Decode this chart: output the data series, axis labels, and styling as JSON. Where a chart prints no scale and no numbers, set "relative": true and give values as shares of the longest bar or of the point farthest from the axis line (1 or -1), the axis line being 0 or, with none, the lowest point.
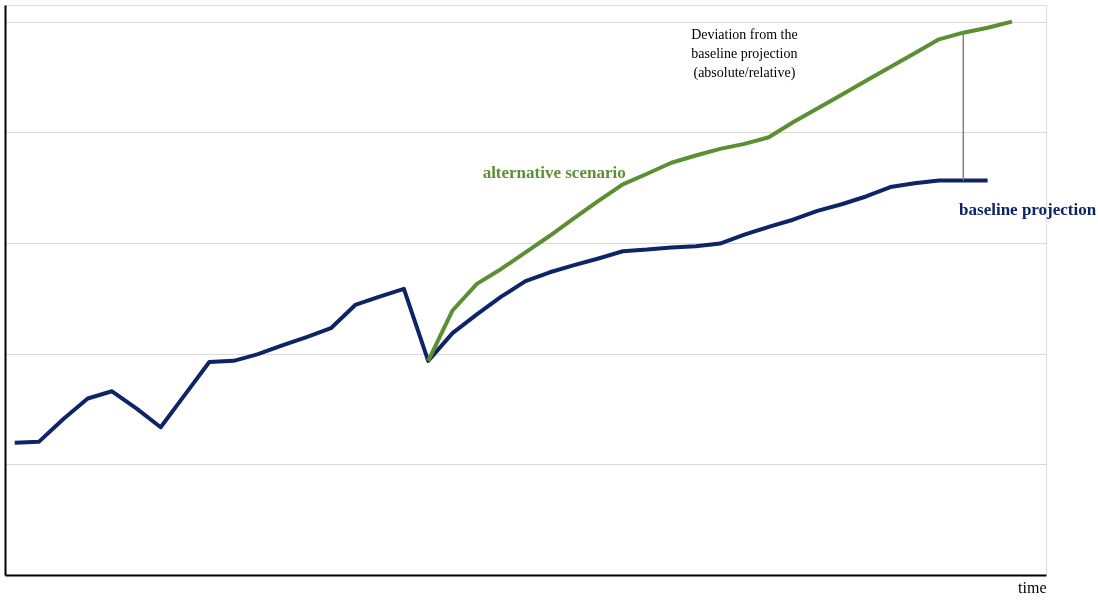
{
  "chart_data": {
    "type": "line",
    "relative": true,
    "xlabel": "time",
    "categories": [
      null,
      null,
      null,
      null,
      null,
      null,
      null,
      null,
      null,
      null,
      null,
      null,
      null,
      null,
      null,
      null,
      null,
      null,
      null,
      null,
      null,
      null,
      null,
      null,
      null,
      null,
      null,
      null,
      null,
      null,
      null,
      null,
      null,
      null,
      null,
      null,
      null,
      null,
      null,
      null,
      null,
      null
    ],
    "series": [
      {
        "name": "baseline projection",
        "color": "#0d2466",
        "values": [
          0.239,
          0.241,
          0.282,
          0.319,
          0.332,
          0.301,
          0.267,
          0.326,
          0.385,
          0.387,
          0.399,
          0.415,
          0.43,
          0.446,
          0.488,
          0.503,
          0.517,
          0.387,
          0.437,
          0.471,
          0.503,
          0.531,
          0.547,
          0.56,
          0.572,
          0.585,
          0.588,
          0.592,
          0.594,
          0.599,
          0.615,
          0.629,
          0.642,
          0.658,
          0.67,
          0.684,
          0.701,
          0.708,
          0.713,
          0.713,
          0.713,
          null
        ]
      },
      {
        "name": "alternative scenario",
        "color": "#5a8f32",
        "values": [
          null,
          null,
          null,
          null,
          null,
          null,
          null,
          null,
          null,
          null,
          null,
          null,
          null,
          null,
          null,
          null,
          null,
          0.387,
          0.478,
          0.526,
          0.553,
          0.583,
          0.613,
          0.645,
          0.676,
          0.706,
          0.725,
          0.745,
          0.758,
          0.77,
          0.779,
          0.791,
          0.818,
          0.843,
          0.868,
          0.893,
          0.918,
          0.943,
          0.968,
          0.98,
          0.989,
          1
        ]
      }
    ],
    "annotations": [
      "Deviation from the baseline projection (absolute/relative)"
    ],
    "grid": "y",
    "legend": false,
    "marker": "none",
    "line_style": "solid"
  }
}
